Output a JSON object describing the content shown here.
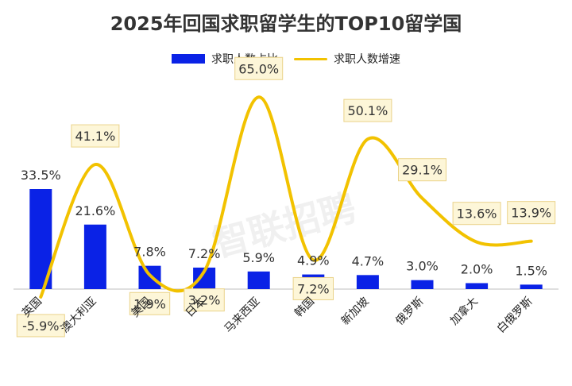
{
  "title": "2025年回国求职留学生的TOP10留学国",
  "watermark": "智联招聘",
  "colors": {
    "bar": "#0a22e6",
    "line": "#f2c200",
    "label_box_fill": "#fdf6d8",
    "label_box_stroke": "#ead38a"
  },
  "chart_data": {
    "type": "bar",
    "categories": [
      "英国",
      "澳大利亚",
      "美国",
      "日本",
      "马来西亚",
      "韩国",
      "新加坡",
      "俄罗斯",
      "加拿大",
      "白俄罗斯"
    ],
    "series": [
      {
        "name": "求职人数占比",
        "type": "bar",
        "values": [
          33.5,
          21.6,
          7.8,
          7.2,
          5.9,
          4.9,
          4.7,
          3.0,
          2.0,
          1.5
        ],
        "labels": [
          "33.5%",
          "21.6%",
          "7.8%",
          "7.2%",
          "5.9%",
          "4.9%",
          "4.7%",
          "3.0%",
          "2.0%",
          "1.5%"
        ]
      },
      {
        "name": "求职人数增速",
        "type": "line",
        "smooth": true,
        "values": [
          -5.9,
          41.1,
          1.9,
          3.2,
          65.0,
          7.2,
          50.1,
          29.1,
          13.6,
          13.9
        ],
        "labels": [
          "-5.9%",
          "41.1%",
          "1.9%",
          "3.2%",
          "65.0%",
          "7.2%",
          "50.1%",
          "29.1%",
          "13.6%",
          "13.9%"
        ]
      }
    ],
    "legend": "top-center",
    "grid": false
  }
}
